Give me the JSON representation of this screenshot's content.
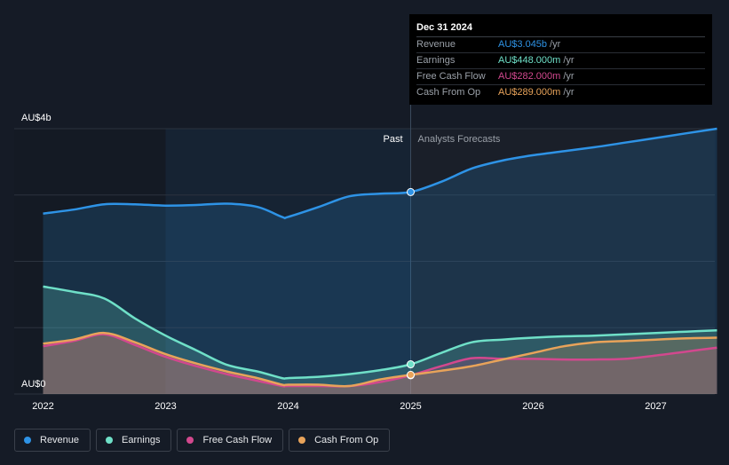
{
  "chart_data": {
    "type": "area",
    "title": "",
    "xlabel": "",
    "ylabel": "",
    "y_axis": {
      "top_label": "AU$4b",
      "bottom_label": "AU$0",
      "ylim": [
        0,
        4.0
      ]
    },
    "x_ticks": [
      "2022",
      "2023",
      "2024",
      "2025",
      "2026",
      "2027"
    ],
    "x_range": [
      2021.8,
      2027.5
    ],
    "divider_x": 2025.0,
    "past_start": 2023.0,
    "region_labels": {
      "past": "Past",
      "forecast": "Analysts Forecasts"
    },
    "series": [
      {
        "name": "Revenue",
        "color": "#2e93e6",
        "points": [
          [
            2022.0,
            2.72
          ],
          [
            2022.25,
            2.78
          ],
          [
            2022.5,
            2.86
          ],
          [
            2022.75,
            2.86
          ],
          [
            2023.0,
            2.84
          ],
          [
            2023.25,
            2.85
          ],
          [
            2023.5,
            2.87
          ],
          [
            2023.75,
            2.82
          ],
          [
            2023.95,
            2.67
          ],
          [
            2024.0,
            2.67
          ],
          [
            2024.25,
            2.82
          ],
          [
            2024.5,
            2.98
          ],
          [
            2024.75,
            3.02
          ],
          [
            2025.0,
            3.045
          ],
          [
            2025.25,
            3.2
          ],
          [
            2025.5,
            3.4
          ],
          [
            2025.75,
            3.52
          ],
          [
            2026.0,
            3.6
          ],
          [
            2026.25,
            3.66
          ],
          [
            2026.5,
            3.72
          ],
          [
            2026.75,
            3.79
          ],
          [
            2027.0,
            3.86
          ],
          [
            2027.25,
            3.93
          ],
          [
            2027.5,
            4.0
          ]
        ]
      },
      {
        "name": "Earnings",
        "color": "#6fe0c8",
        "points": [
          [
            2022.0,
            1.62
          ],
          [
            2022.25,
            1.54
          ],
          [
            2022.5,
            1.44
          ],
          [
            2022.75,
            1.14
          ],
          [
            2023.0,
            0.88
          ],
          [
            2023.25,
            0.66
          ],
          [
            2023.5,
            0.44
          ],
          [
            2023.75,
            0.34
          ],
          [
            2023.95,
            0.24
          ],
          [
            2024.0,
            0.24
          ],
          [
            2024.25,
            0.26
          ],
          [
            2024.5,
            0.3
          ],
          [
            2024.75,
            0.36
          ],
          [
            2025.0,
            0.448
          ],
          [
            2025.25,
            0.62
          ],
          [
            2025.5,
            0.78
          ],
          [
            2025.75,
            0.82
          ],
          [
            2026.0,
            0.85
          ],
          [
            2026.25,
            0.87
          ],
          [
            2026.5,
            0.88
          ],
          [
            2026.75,
            0.9
          ],
          [
            2027.0,
            0.92
          ],
          [
            2027.25,
            0.94
          ],
          [
            2027.5,
            0.96
          ]
        ]
      },
      {
        "name": "Free Cash Flow",
        "color": "#d2488e",
        "points": [
          [
            2022.0,
            0.72
          ],
          [
            2022.25,
            0.8
          ],
          [
            2022.5,
            0.9
          ],
          [
            2022.75,
            0.74
          ],
          [
            2023.0,
            0.56
          ],
          [
            2023.25,
            0.42
          ],
          [
            2023.5,
            0.3
          ],
          [
            2023.75,
            0.2
          ],
          [
            2023.95,
            0.12
          ],
          [
            2024.0,
            0.12
          ],
          [
            2024.25,
            0.12
          ],
          [
            2024.5,
            0.12
          ],
          [
            2024.75,
            0.18
          ],
          [
            2025.0,
            0.282
          ],
          [
            2025.25,
            0.42
          ],
          [
            2025.5,
            0.54
          ],
          [
            2025.75,
            0.53
          ],
          [
            2026.0,
            0.53
          ],
          [
            2026.25,
            0.52
          ],
          [
            2026.5,
            0.52
          ],
          [
            2026.75,
            0.53
          ],
          [
            2027.0,
            0.58
          ],
          [
            2027.25,
            0.64
          ],
          [
            2027.5,
            0.7
          ]
        ]
      },
      {
        "name": "Cash From Op",
        "color": "#e8a35a",
        "points": [
          [
            2022.0,
            0.76
          ],
          [
            2022.25,
            0.82
          ],
          [
            2022.5,
            0.92
          ],
          [
            2022.75,
            0.78
          ],
          [
            2023.0,
            0.6
          ],
          [
            2023.25,
            0.46
          ],
          [
            2023.5,
            0.34
          ],
          [
            2023.75,
            0.24
          ],
          [
            2023.95,
            0.14
          ],
          [
            2024.0,
            0.14
          ],
          [
            2024.25,
            0.14
          ],
          [
            2024.5,
            0.12
          ],
          [
            2024.75,
            0.22
          ],
          [
            2025.0,
            0.289
          ],
          [
            2025.25,
            0.35
          ],
          [
            2025.5,
            0.42
          ],
          [
            2025.75,
            0.52
          ],
          [
            2026.0,
            0.62
          ],
          [
            2026.25,
            0.72
          ],
          [
            2026.5,
            0.78
          ],
          [
            2026.75,
            0.8
          ],
          [
            2027.0,
            0.82
          ],
          [
            2027.25,
            0.84
          ],
          [
            2027.5,
            0.85
          ]
        ]
      }
    ],
    "tooltip": {
      "date": "Dec 31 2024",
      "rows": [
        {
          "label": "Revenue",
          "value": "AU$3.045b",
          "unit": "/yr",
          "color": "#2e93e6"
        },
        {
          "label": "Earnings",
          "value": "AU$448.000m",
          "unit": "/yr",
          "color": "#6fe0c8"
        },
        {
          "label": "Free Cash Flow",
          "value": "AU$282.000m",
          "unit": "/yr",
          "color": "#d2488e"
        },
        {
          "label": "Cash From Op",
          "value": "AU$289.000m",
          "unit": "/yr",
          "color": "#e8a35a"
        }
      ]
    }
  },
  "legend": [
    {
      "label": "Revenue",
      "color": "#2e93e6"
    },
    {
      "label": "Earnings",
      "color": "#6fe0c8"
    },
    {
      "label": "Free Cash Flow",
      "color": "#d2488e"
    },
    {
      "label": "Cash From Op",
      "color": "#e8a35a"
    }
  ]
}
